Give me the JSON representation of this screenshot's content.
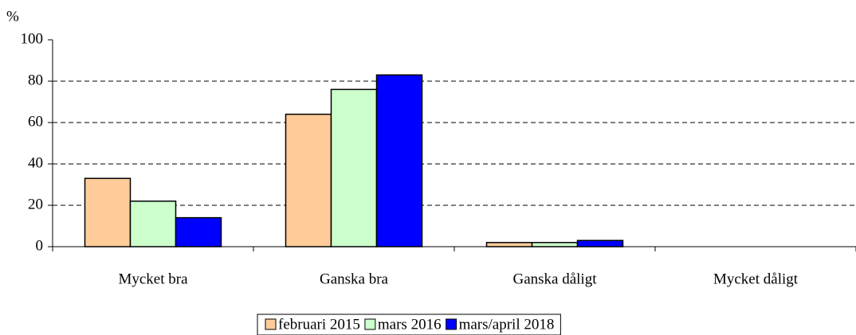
{
  "chart_data": {
    "type": "bar",
    "y_label": "%",
    "categories": [
      "Mycket bra",
      "Ganska bra",
      "Ganska dåligt",
      "Mycket dåligt"
    ],
    "series": [
      {
        "name": "februari 2015",
        "color": "#ffcc99",
        "values": [
          33,
          64,
          2,
          0
        ]
      },
      {
        "name": "mars 2016",
        "color": "#ccffcc",
        "values": [
          22,
          76,
          2,
          0
        ]
      },
      {
        "name": "mars/april 2018",
        "color": "#0000ff",
        "values": [
          14,
          83,
          3,
          0
        ]
      }
    ],
    "ylim": [
      0,
      100
    ],
    "yticks": [
      0,
      20,
      40,
      60,
      80,
      100
    ],
    "grid": true,
    "legend": "bottom"
  }
}
